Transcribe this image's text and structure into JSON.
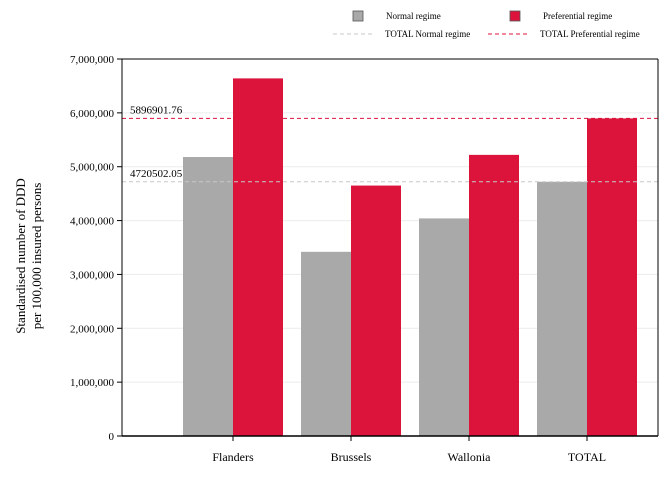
{
  "chart_data": {
    "type": "bar",
    "categories": [
      "Flanders",
      "Brussels",
      "Wallonia",
      "TOTAL"
    ],
    "series": [
      {
        "name": "Normal regime",
        "color": "#a9a9a9",
        "values": [
          5180000,
          3420000,
          4040000,
          4720502.05
        ]
      },
      {
        "name": "Preferential regime",
        "color": "#dc143c",
        "values": [
          6640000,
          4650000,
          5220000,
          5896901.76
        ]
      }
    ],
    "reference_lines": [
      {
        "name": "TOTAL Normal regime",
        "value": 4720502.05,
        "label": "4720502.05",
        "color": "#c8c8c8"
      },
      {
        "name": "TOTAL Preferential regime",
        "value": 5896901.76,
        "label": "5896901.76",
        "color": "#dc143c"
      }
    ],
    "ylabel_lines": [
      "Standardised number of DDD",
      "per 100,000 insured persons"
    ],
    "ylim": [
      0,
      7000000
    ],
    "yticks": [
      0,
      1000000,
      2000000,
      3000000,
      4000000,
      5000000,
      6000000,
      7000000
    ],
    "ytick_labels": [
      "0",
      "1,000,000",
      "2,000,000",
      "3,000,000",
      "4,000,000",
      "5,000,000",
      "6,000,000",
      "7,000,000"
    ],
    "grid": true,
    "legend_position": "top"
  }
}
